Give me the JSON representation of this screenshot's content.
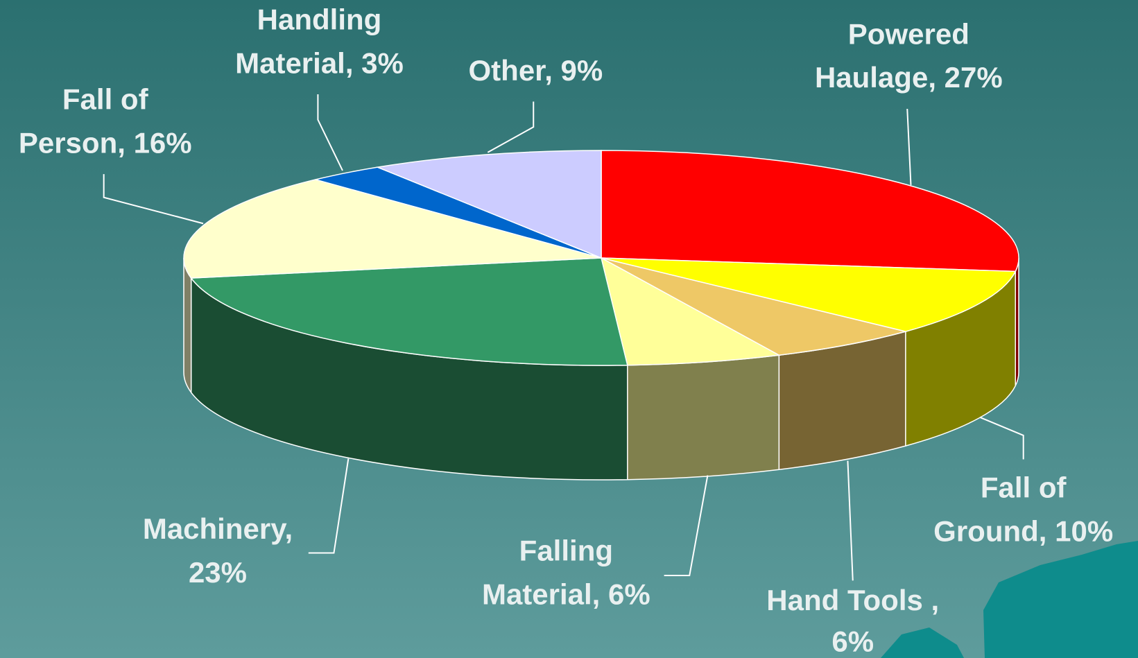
{
  "chart_data": {
    "type": "pie3d",
    "labels": [
      [
        "Powered",
        "Haulage, 27%"
      ],
      [
        "Fall of",
        "Ground, 10%"
      ],
      [
        "Hand Tools ,",
        "6%"
      ],
      [
        "Falling",
        "Material, 6%"
      ],
      [
        "Machinery,",
        "23%"
      ],
      [
        "Fall of",
        "Person, 16%"
      ],
      [
        "Handling",
        "Material, 3%"
      ],
      [
        "Other, 9%"
      ]
    ],
    "values": [
      27,
      10,
      6,
      6,
      23,
      16,
      3,
      9
    ],
    "colors": [
      "#ff0000",
      "#ffff00",
      "#eec866",
      "#ffff99",
      "#339966",
      "#ffffcc",
      "#0066cc",
      "#ccccff"
    ]
  }
}
